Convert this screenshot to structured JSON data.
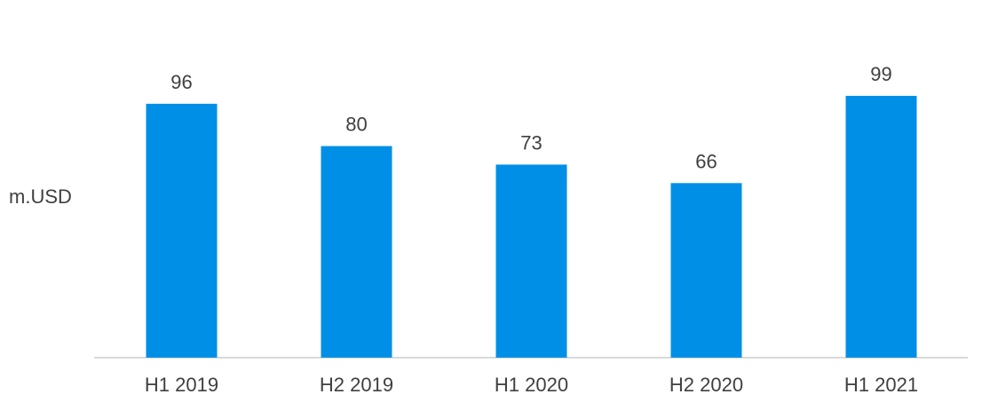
{
  "chart_data": {
    "type": "bar",
    "categories": [
      "H1 2019",
      "H2 2019",
      "H1 2020",
      "H2 2020",
      "H1 2021"
    ],
    "values": [
      96,
      80,
      73,
      66,
      99
    ],
    "data_labels": [
      "96",
      "80",
      "73",
      "66",
      "99"
    ],
    "ylabel": "m.USD",
    "xlabel": "",
    "ylim": [
      0,
      100
    ],
    "grid": false,
    "legend": "none",
    "colors": {
      "bar": "#008fe6",
      "axis": "#d9d9d9",
      "text": "#404040"
    }
  }
}
